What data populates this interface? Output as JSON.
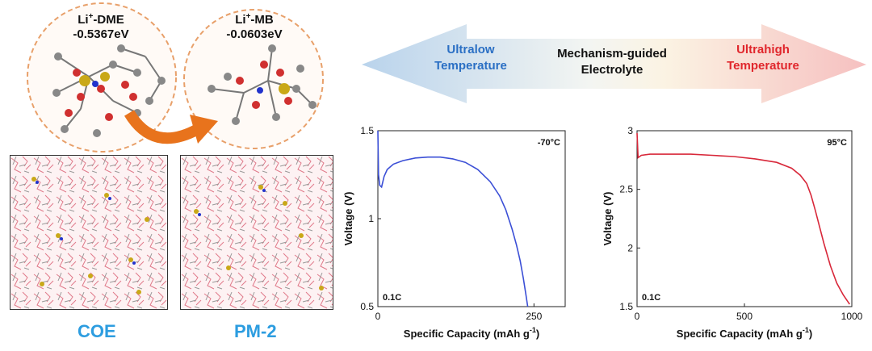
{
  "molecules": {
    "left": {
      "line1": "Li",
      "sup": "+",
      "line1b": "-DME",
      "energy": "-0.5367eV"
    },
    "right": {
      "line1": "Li",
      "sup": "+",
      "line1b": "-MB",
      "energy": "-0.0603eV"
    }
  },
  "arrow": {
    "left_line1": "Ultralow",
    "left_line2": "Temperature",
    "center_line1": "Mechanism-guided",
    "center_line2": "Electrolyte",
    "right_line1": "Ultrahigh",
    "right_line2": "Temperature",
    "left_color": "#2a6fc4",
    "right_color": "#e0262c"
  },
  "boxes": {
    "left_label": "COE",
    "right_label": "PM-2"
  },
  "chart_data": [
    {
      "type": "line",
      "annotation_temp": "-70°C",
      "annotation_rate": "0.1C",
      "xlabel": "Specific Capacity (mAh g",
      "xlabel_sup": "-1",
      "xlabel_end": ")",
      "ylabel": "Voltage (V)",
      "xlim": [
        0,
        300
      ],
      "ylim": [
        0.5,
        1.5
      ],
      "xticks": [
        {
          "v": 0,
          "t": "0"
        },
        {
          "v": 250,
          "t": "250"
        }
      ],
      "yticks": [
        {
          "v": 0.5,
          "t": "0.5"
        },
        {
          "v": 1,
          "t": "1"
        },
        {
          "v": 1.5,
          "t": "1.5"
        }
      ],
      "color": "#3b4fd6",
      "x": [
        0,
        1,
        3,
        6,
        10,
        15,
        25,
        40,
        60,
        80,
        100,
        120,
        140,
        160,
        180,
        195,
        205,
        215,
        222,
        228,
        233,
        237,
        240
      ],
      "y": [
        1.5,
        1.25,
        1.19,
        1.18,
        1.24,
        1.28,
        1.31,
        1.33,
        1.345,
        1.35,
        1.35,
        1.34,
        1.32,
        1.28,
        1.21,
        1.13,
        1.05,
        0.94,
        0.85,
        0.76,
        0.66,
        0.57,
        0.5
      ]
    },
    {
      "type": "line",
      "annotation_temp": "95°C",
      "annotation_rate": "0.1C",
      "xlabel": "Specific Capacity (mAh g",
      "xlabel_sup": "-1",
      "xlabel_end": ")",
      "ylabel": "Voltage (V)",
      "xlim": [
        0,
        1000
      ],
      "ylim": [
        1.5,
        3
      ],
      "xticks": [
        {
          "v": 0,
          "t": "0"
        },
        {
          "v": 500,
          "t": "500"
        },
        {
          "v": 1000,
          "t": "1000"
        }
      ],
      "yticks": [
        {
          "v": 1.5,
          "t": "1.5"
        },
        {
          "v": 2,
          "t": "2"
        },
        {
          "v": 2.5,
          "t": "2.5"
        },
        {
          "v": 3,
          "t": "3"
        }
      ],
      "color": "#d8283a",
      "x": [
        0,
        5,
        20,
        60,
        150,
        250,
        350,
        450,
        550,
        650,
        720,
        760,
        790,
        810,
        830,
        850,
        870,
        900,
        930,
        960,
        990
      ],
      "y": [
        2.98,
        2.77,
        2.79,
        2.8,
        2.8,
        2.8,
        2.79,
        2.78,
        2.76,
        2.73,
        2.68,
        2.62,
        2.55,
        2.45,
        2.32,
        2.18,
        2.04,
        1.85,
        1.7,
        1.6,
        1.52
      ]
    }
  ]
}
